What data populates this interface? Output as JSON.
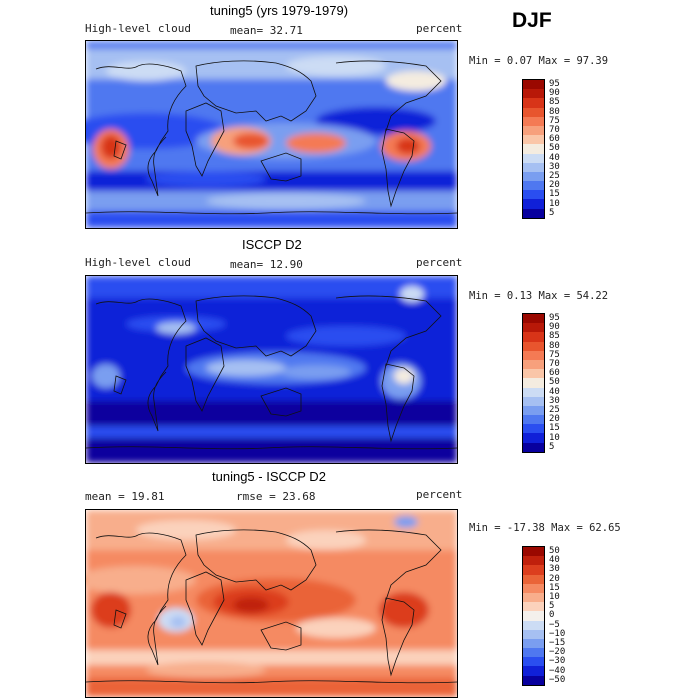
{
  "season": "DJF",
  "palette": {
    "seq": [
      "#08009e",
      "#1020d8",
      "#2a4ef0",
      "#4f78f0",
      "#7a9ef0",
      "#a6c0f2",
      "#ccdcf4",
      "#f4ece0",
      "#fac6a8",
      "#f7a07c",
      "#f47a54",
      "#e8552e",
      "#d83418",
      "#b81808",
      "#9a0800"
    ],
    "div": [
      "#08009e",
      "#1020d8",
      "#2a4ef0",
      "#4f78f0",
      "#7a9ef0",
      "#a6c0f2",
      "#ccdcf4",
      "#f4f0ec",
      "#fbd2bc",
      "#f8ae8c",
      "#f58a62",
      "#ea6438",
      "#dc3e1e",
      "#c0200c",
      "#9a0800"
    ]
  },
  "panels": [
    {
      "title": "tuning5 (yrs 1979-1979)",
      "left_label": "High-level cloud",
      "stat1": "mean=  32.71",
      "stat2": "",
      "unit": "percent",
      "minmax": "Min =   0.07 Max =  97.39",
      "colorbar": [
        "95",
        "90",
        "85",
        "80",
        "75",
        "70",
        "60",
        "50",
        "40",
        "30",
        "25",
        "20",
        "15",
        "10",
        "5"
      ],
      "chart_data": {
        "type": "heatmap",
        "field": "High-level cloud",
        "units": "percent",
        "mean": 32.71,
        "min": 0.07,
        "max": 97.39
      }
    },
    {
      "title": "ISCCP D2",
      "left_label": "High-level cloud",
      "stat1": "mean=  12.90",
      "stat2": "",
      "unit": "percent",
      "minmax": "Min =   0.13 Max =  54.22",
      "colorbar": [
        "95",
        "90",
        "85",
        "80",
        "75",
        "70",
        "60",
        "50",
        "40",
        "30",
        "25",
        "20",
        "15",
        "10",
        "5"
      ],
      "chart_data": {
        "type": "heatmap",
        "field": "High-level cloud",
        "units": "percent",
        "mean": 12.9,
        "min": 0.13,
        "max": 54.22
      }
    },
    {
      "title": "tuning5 - ISCCP D2",
      "left_label": "mean =  19.81",
      "stat1": "",
      "stat2": "rmse =  23.68",
      "unit": "percent",
      "minmax": "Min = -17.38 Max =  62.65",
      "colorbar": [
        "50",
        "40",
        "30",
        "20",
        "15",
        "10",
        "5",
        "0",
        "−5",
        "−10",
        "−15",
        "−20",
        "−30",
        "−40",
        "−50"
      ],
      "chart_data": {
        "type": "heatmap",
        "field": "difference",
        "units": "percent",
        "mean": 19.81,
        "rmse": 23.68,
        "min": -17.38,
        "max": 62.65
      }
    }
  ],
  "chart_data": [
    {
      "type": "heatmap",
      "title": "tuning5 (yrs 1979-1979)",
      "variable": "High-level cloud",
      "units": "percent",
      "mean": 32.71,
      "min": 0.07,
      "max": 97.39,
      "levels": [
        5,
        10,
        15,
        20,
        25,
        30,
        40,
        50,
        60,
        70,
        75,
        80,
        85,
        90,
        95
      ]
    },
    {
      "type": "heatmap",
      "title": "ISCCP D2",
      "variable": "High-level cloud",
      "units": "percent",
      "mean": 12.9,
      "min": 0.13,
      "max": 54.22,
      "levels": [
        5,
        10,
        15,
        20,
        25,
        30,
        40,
        50,
        60,
        70,
        75,
        80,
        85,
        90,
        95
      ]
    },
    {
      "type": "heatmap",
      "title": "tuning5 - ISCCP D2",
      "variable": "High-level cloud difference",
      "units": "percent",
      "mean": 19.81,
      "rmse": 23.68,
      "min": -17.38,
      "max": 62.65,
      "levels": [
        -50,
        -40,
        -30,
        -20,
        -15,
        -10,
        -5,
        0,
        5,
        10,
        15,
        20,
        30,
        40,
        50
      ]
    }
  ]
}
